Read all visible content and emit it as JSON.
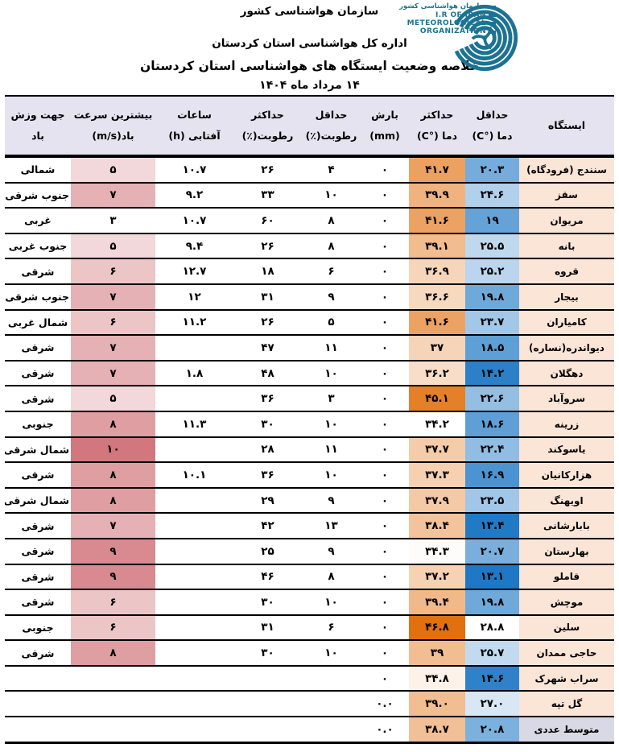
{
  "header": {
    "org_line1": "سازمان هواشناسی کشور",
    "org_line2": "اداره کل هواشناسی استان کردستان",
    "title": "خلاصه وضعیت ایستگاه های هواشناسی استان کردستان",
    "date": "۱۴ مرداد ماه ۱۴۰۴",
    "logo": {
      "fa": "سازمان هواشناسی کشور",
      "en1": "I.R OF IRAN",
      "en2": "METEOROLOGICAL",
      "en3": "ORGANIZATION",
      "color": "#1c7292"
    }
  },
  "table": {
    "columns": [
      {
        "key": "station",
        "label1": "ایستگاه",
        "label2": ""
      },
      {
        "key": "tmin",
        "label1": "حداقل",
        "label2": "دما (°C)"
      },
      {
        "key": "tmax",
        "label1": "حداکثر",
        "label2": "دما (°C)"
      },
      {
        "key": "precip",
        "label1": "بارش",
        "label2": "(mm)"
      },
      {
        "key": "rhmin",
        "label1": "حداقل",
        "label2": "رطوبت(٪)"
      },
      {
        "key": "rhmax",
        "label1": "حداکثر",
        "label2": "رطوبت(٪)"
      },
      {
        "key": "sun",
        "label1": "ساعات",
        "label2": "آفتابی (h)"
      },
      {
        "key": "wind",
        "label1": "بیشترین سرعت",
        "label2": "باد(m/s)"
      },
      {
        "key": "dir",
        "label1": "جهت وزش",
        "label2": "باد"
      }
    ],
    "colors": {
      "station_bg": "#fbe5d6",
      "avg_station_bg": "#d9d9e6",
      "header_bg": "#e4e3ef"
    },
    "scales": {
      "tmax": {
        "min": 34.2,
        "max": 46.8,
        "low": "#ffffff",
        "high": "#e2700f",
        "gamma": 0.8
      },
      "tmin": {
        "min": 13.1,
        "max": 28.8,
        "low": "#ffffff",
        "high": "#1e78c5",
        "gamma": 0.8,
        "invert": true
      },
      "wind": {
        "min": 3,
        "max": 10,
        "low": "#ffffff",
        "high": "#d2777d",
        "gamma": 1
      }
    },
    "rows": [
      {
        "station": "سنندج (فرودگاه)",
        "tmin": {
          "t": "۲۰.۳",
          "v": 20.3
        },
        "tmax": {
          "t": "۴۱.۷",
          "v": 41.7
        },
        "precip": "۰",
        "rhmin": "۴",
        "rhmax": "۲۶",
        "sun": "۱۰.۷",
        "wind": {
          "t": "۵",
          "v": 5
        },
        "dir": "شمالی"
      },
      {
        "station": "سقز",
        "tmin": {
          "t": "۲۴.۶",
          "v": 24.6
        },
        "tmax": {
          "t": "۳۹.۹",
          "v": 39.9
        },
        "precip": "۰",
        "rhmin": "۱۰",
        "rhmax": "۳۳",
        "sun": "۹.۲",
        "wind": {
          "t": "۷",
          "v": 7
        },
        "dir": "جنوب شرقی"
      },
      {
        "station": "مریوان",
        "tmin": {
          "t": "۱۹",
          "v": 19
        },
        "tmax": {
          "t": "۴۱.۶",
          "v": 41.6
        },
        "precip": "۰",
        "rhmin": "۸",
        "rhmax": "۶۰",
        "sun": "۱۰.۷",
        "wind": {
          "t": "۳",
          "v": 3
        },
        "dir": "غربی"
      },
      {
        "station": "بانه",
        "tmin": {
          "t": "۲۵.۵",
          "v": 25.5
        },
        "tmax": {
          "t": "۳۹.۱",
          "v": 39.1
        },
        "precip": "۰",
        "rhmin": "۸",
        "rhmax": "۲۶",
        "sun": "۹.۴",
        "wind": {
          "t": "۵",
          "v": 5
        },
        "dir": "جنوب غربی"
      },
      {
        "station": "قروه",
        "tmin": {
          "t": "۲۵.۲",
          "v": 25.2
        },
        "tmax": {
          "t": "۳۶.۹",
          "v": 36.9
        },
        "precip": "۰",
        "rhmin": "۶",
        "rhmax": "۱۸",
        "sun": "۱۲.۷",
        "wind": {
          "t": "۶",
          "v": 6
        },
        "dir": "شرقی"
      },
      {
        "station": "بیجار",
        "tmin": {
          "t": "۱۹.۸",
          "v": 19.8
        },
        "tmax": {
          "t": "۳۶.۶",
          "v": 36.6
        },
        "precip": "۰",
        "rhmin": "۹",
        "rhmax": "۳۱",
        "sun": "۱۲",
        "wind": {
          "t": "۷",
          "v": 7
        },
        "dir": "جنوب شرقی"
      },
      {
        "station": "کامیاران",
        "tmin": {
          "t": "۲۳.۷",
          "v": 23.7
        },
        "tmax": {
          "t": "۴۱.۶",
          "v": 41.6
        },
        "precip": "۰",
        "rhmin": "۵",
        "rhmax": "۲۶",
        "sun": "۱۱.۲",
        "wind": {
          "t": "۶",
          "v": 6
        },
        "dir": "شمال غربی"
      },
      {
        "station": "دیواندره(نساره)",
        "tmin": {
          "t": "۱۸.۵",
          "v": 18.5
        },
        "tmax": {
          "t": "۳۷",
          "v": 37
        },
        "precip": "۰",
        "rhmin": "۱۱",
        "rhmax": "۴۷",
        "sun": "",
        "wind": {
          "t": "۷",
          "v": 7
        },
        "dir": "شرقی"
      },
      {
        "station": "دهگلان",
        "tmin": {
          "t": "۱۴.۲",
          "v": 14.2
        },
        "tmax": {
          "t": "۳۶.۲",
          "v": 36.2
        },
        "precip": "۰",
        "rhmin": "۱۰",
        "rhmax": "۴۸",
        "sun": "۱.۸",
        "wind": {
          "t": "۷",
          "v": 7
        },
        "dir": "شرقی"
      },
      {
        "station": "سروآباد",
        "tmin": {
          "t": "۲۲.۶",
          "v": 22.6
        },
        "tmax": {
          "t": "۴۵.۱",
          "v": 45.1
        },
        "precip": "۰",
        "rhmin": "۳",
        "rhmax": "۳۶",
        "sun": "",
        "wind": {
          "t": "۵",
          "v": 5
        },
        "dir": "شرقی"
      },
      {
        "station": "زرینه",
        "tmin": {
          "t": "۱۸.۶",
          "v": 18.6
        },
        "tmax": {
          "t": "۳۴.۲",
          "v": 34.2
        },
        "precip": "۰",
        "rhmin": "۱۰",
        "rhmax": "۳۰",
        "sun": "۱۱.۳",
        "wind": {
          "t": "۸",
          "v": 8
        },
        "dir": "جنوبی"
      },
      {
        "station": "یاسوکند",
        "tmin": {
          "t": "۲۲.۴",
          "v": 22.4
        },
        "tmax": {
          "t": "۳۷.۷",
          "v": 37.7
        },
        "precip": "۰",
        "rhmin": "۱۱",
        "rhmax": "۲۸",
        "sun": "",
        "wind": {
          "t": "۱۰",
          "v": 10
        },
        "dir": "شمال شرقی"
      },
      {
        "station": "هزارکانیان",
        "tmin": {
          "t": "۱۶.۹",
          "v": 16.9
        },
        "tmax": {
          "t": "۳۷.۳",
          "v": 37.3
        },
        "precip": "۰",
        "rhmin": "۱۰",
        "rhmax": "۳۶",
        "sun": "۱۰.۱",
        "wind": {
          "t": "۸",
          "v": 8
        },
        "dir": "شرقی"
      },
      {
        "station": "اویهنگ",
        "tmin": {
          "t": "۲۳.۵",
          "v": 23.5
        },
        "tmax": {
          "t": "۳۷.۹",
          "v": 37.9
        },
        "precip": "۰",
        "rhmin": "۹",
        "rhmax": "۲۹",
        "sun": "",
        "wind": {
          "t": "۸",
          "v": 8
        },
        "dir": "شمال شرقی"
      },
      {
        "station": "بابارشانی",
        "tmin": {
          "t": "۱۳.۴",
          "v": 13.4
        },
        "tmax": {
          "t": "۳۸.۴",
          "v": 38.4
        },
        "precip": "۰",
        "rhmin": "۱۳",
        "rhmax": "۴۲",
        "sun": "",
        "wind": {
          "t": "۷",
          "v": 7
        },
        "dir": "شرقی"
      },
      {
        "station": "بهارستان",
        "tmin": {
          "t": "۲۰.۷",
          "v": 20.7
        },
        "tmax": {
          "t": "۳۴.۳",
          "v": 34.3
        },
        "precip": "۰",
        "rhmin": "۹",
        "rhmax": "۲۵",
        "sun": "",
        "wind": {
          "t": "۹",
          "v": 9
        },
        "dir": "شرقی"
      },
      {
        "station": "قاملو",
        "tmin": {
          "t": "۱۳.۱",
          "v": 13.1
        },
        "tmax": {
          "t": "۳۷.۲",
          "v": 37.2
        },
        "precip": "۰",
        "rhmin": "۸",
        "rhmax": "۴۶",
        "sun": "",
        "wind": {
          "t": "۹",
          "v": 9
        },
        "dir": "شرقی"
      },
      {
        "station": "موچش",
        "tmin": {
          "t": "۱۹.۸",
          "v": 19.8
        },
        "tmax": {
          "t": "۳۹.۴",
          "v": 39.4
        },
        "precip": "۰",
        "rhmin": "۱۰",
        "rhmax": "۳۰",
        "sun": "",
        "wind": {
          "t": "۶",
          "v": 6
        },
        "dir": "شرقی"
      },
      {
        "station": "سلین",
        "tmin": {
          "t": "۲۸.۸",
          "v": 28.8
        },
        "tmax": {
          "t": "۴۶.۸",
          "v": 46.8
        },
        "precip": "۰",
        "rhmin": "۶",
        "rhmax": "۳۱",
        "sun": "",
        "wind": {
          "t": "۶",
          "v": 6
        },
        "dir": "جنوبی"
      },
      {
        "station": "حاجی ممدان",
        "tmin": {
          "t": "۲۵.۷",
          "v": 25.7
        },
        "tmax": {
          "t": "۳۹",
          "v": 39
        },
        "precip": "۰",
        "rhmin": "۱۰",
        "rhmax": "۳۰",
        "sun": "",
        "wind": {
          "t": "۸",
          "v": 8
        },
        "dir": "شرقی"
      },
      {
        "station": "سراب شهرک",
        "tmin": {
          "t": "۱۴.۶",
          "v": 14.6
        },
        "tmax": {
          "t": "۳۴.۸",
          "v": 34.8
        },
        "precip": "۰",
        "rhmin": "",
        "rhmax": "",
        "sun": "",
        "wind": null,
        "dir": ""
      },
      {
        "station": "گل تپه",
        "tmin": {
          "t": "۲۷.۰",
          "v": 27.0
        },
        "tmax": {
          "t": "۳۹.۰",
          "v": 39.0
        },
        "precip": "۰.۰",
        "rhmin": "",
        "rhmax": "",
        "sun": "",
        "wind": null,
        "dir": ""
      },
      {
        "station": "متوسط عددی",
        "tmin": {
          "t": "۲۰.۸",
          "v": 20.8
        },
        "tmax": {
          "t": "۳۸.۷",
          "v": 38.7
        },
        "precip": "۰.۰",
        "rhmin": "",
        "rhmax": "",
        "sun": "",
        "wind": null,
        "dir": "",
        "highlight": true
      }
    ]
  }
}
